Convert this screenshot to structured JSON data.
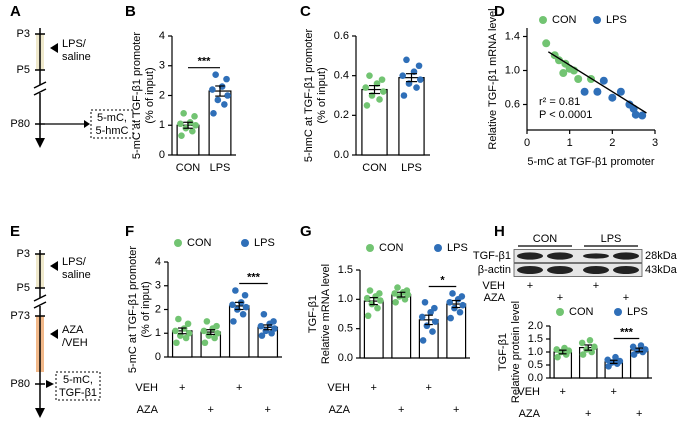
{
  "panel_labels": [
    "A",
    "B",
    "C",
    "D",
    "E",
    "F",
    "G",
    "H"
  ],
  "timeline_a": {
    "days": [
      "P3",
      "P5",
      "P80"
    ],
    "treatment": [
      "LPS/",
      "saline"
    ],
    "readout": [
      "5-mC,",
      "5-hmC"
    ]
  },
  "timeline_e": {
    "days": [
      "P3",
      "P5",
      "P73",
      "P80"
    ],
    "treatments": [
      [
        "LPS/",
        "saline"
      ],
      [
        "AZA",
        "/VEH"
      ]
    ],
    "readout": [
      "5-mC,",
      "TGF-β1"
    ]
  },
  "blot": {
    "groups": [
      "CON",
      "LPS"
    ],
    "bands": [
      {
        "name": "TGF-β1",
        "size": "28kDa"
      },
      {
        "name": "β-actin",
        "size": "43kDa"
      }
    ],
    "treatments": [
      {
        "name": "VEH",
        "marks": [
          "+",
          null,
          "+",
          null
        ]
      },
      {
        "name": "AZA",
        "marks": [
          null,
          "+",
          null,
          "+"
        ]
      }
    ]
  },
  "chart_data": [
    {
      "type": "bar",
      "ylabel": [
        "5-mC at TGF-β1 promoter",
        "(% of input)"
      ],
      "categories": [
        "CON",
        "LPS"
      ],
      "values": [
        1.0,
        2.15
      ],
      "errors": [
        0.1,
        0.17
      ],
      "colors": [
        "#72c472",
        "#2f6fb8"
      ],
      "points": [
        [
          0.65,
          0.8,
          0.9,
          1.0,
          1.05,
          1.1,
          1.3,
          1.4
        ],
        [
          1.4,
          1.7,
          1.85,
          2.0,
          2.2,
          2.3,
          2.55,
          2.7
        ]
      ],
      "ylim": [
        0,
        4
      ],
      "yticks": [
        0,
        1,
        2,
        3,
        4
      ],
      "significance": "***"
    },
    {
      "type": "bar",
      "ylabel": [
        "5-hmC at TGF-β1 promoter",
        "(% of input)"
      ],
      "categories": [
        "CON",
        "LPS"
      ],
      "values": [
        0.33,
        0.39
      ],
      "errors": [
        0.02,
        0.02
      ],
      "colors": [
        "#72c472",
        "#2f6fb8"
      ],
      "points": [
        [
          0.25,
          0.28,
          0.3,
          0.32,
          0.34,
          0.36,
          0.38,
          0.4
        ],
        [
          0.3,
          0.34,
          0.36,
          0.38,
          0.4,
          0.42,
          0.45,
          0.48
        ]
      ],
      "ylim": [
        0,
        0.6
      ],
      "yticks": [
        {
          "value": 0,
          "label": "0.0"
        },
        0.2,
        0.4,
        0.6
      ]
    },
    {
      "type": "scatter",
      "ylabel": "Relative TGF-β1 mRNA level",
      "xlabel": "5-mC at TGF-β1 promoter",
      "series": [
        {
          "name": "CON",
          "color": "#72c472",
          "x": [
            0.45,
            0.65,
            0.75,
            0.85,
            0.9,
            1.0,
            1.1,
            1.2,
            1.5
          ],
          "y": [
            1.32,
            1.18,
            1.12,
            0.97,
            1.08,
            1.02,
            1.0,
            0.9,
            0.9
          ]
        },
        {
          "name": "LPS",
          "color": "#2f6fb8",
          "x": [
            1.35,
            1.65,
            1.8,
            2.0,
            2.2,
            2.4,
            2.5,
            2.55,
            2.7
          ],
          "y": [
            0.75,
            0.75,
            0.88,
            0.68,
            0.75,
            0.6,
            0.55,
            0.48,
            0.47
          ]
        }
      ],
      "fit": {
        "x": [
          0.5,
          2.8
        ],
        "y": [
          1.22,
          0.5
        ]
      },
      "annotations": [
        "r² = 0.81",
        "P < 0.0001"
      ],
      "xlim": [
        0,
        3
      ],
      "xticks": [
        0,
        1,
        2,
        3
      ],
      "ylim": [
        0.3,
        1.5
      ],
      "yticks": [
        0.6,
        {
          "value": 1,
          "label": "1.0"
        },
        1.4
      ]
    },
    {
      "type": "bar",
      "ylabel": [
        "5-mC at TGF-β1 promoter",
        "(% of input)"
      ],
      "series": [
        {
          "name": "CON",
          "color": "#72c472",
          "values": [
            1.1,
            1.05
          ],
          "errors": [
            0.12,
            0.1
          ],
          "points": [
            [
              0.6,
              0.8,
              0.9,
              1.0,
              1.1,
              1.2,
              1.4,
              1.6
            ],
            [
              0.6,
              0.8,
              0.9,
              1.0,
              1.1,
              1.2,
              1.3,
              1.5
            ]
          ]
        },
        {
          "name": "LPS",
          "color": "#2f6fb8",
          "values": [
            2.15,
            1.25
          ],
          "errors": [
            0.15,
            0.1
          ],
          "significance": "***",
          "points": [
            [
              1.5,
              1.8,
              2.0,
              2.1,
              2.2,
              2.3,
              2.6,
              2.8
            ],
            [
              0.9,
              1.0,
              1.1,
              1.2,
              1.3,
              1.4,
              1.5,
              1.8
            ]
          ]
        }
      ],
      "treatments": [
        {
          "name": "VEH",
          "marks": [
            "+",
            null,
            "+",
            null
          ]
        },
        {
          "name": "AZA",
          "marks": [
            null,
            "+",
            null,
            "+"
          ]
        }
      ],
      "ylim": [
        0,
        4
      ],
      "yticks": [
        0,
        1,
        2,
        3,
        4
      ]
    },
    {
      "type": "bar",
      "ylabel": [
        "TGF-β1",
        "Relative mRNA level"
      ],
      "series": [
        {
          "name": "CON",
          "color": "#72c472",
          "values": [
            0.97,
            1.08
          ],
          "errors": [
            0.06,
            0.04
          ],
          "points": [
            [
              0.72,
              0.85,
              0.92,
              0.98,
              1.02,
              1.05,
              1.1,
              1.15
            ],
            [
              0.95,
              1.0,
              1.05,
              1.08,
              1.1,
              1.12,
              1.15,
              1.2
            ]
          ]
        },
        {
          "name": "LPS",
          "color": "#2f6fb8",
          "values": [
            0.65,
            0.92
          ],
          "errors": [
            0.08,
            0.06
          ],
          "significance": "*",
          "points": [
            [
              0.3,
              0.45,
              0.55,
              0.62,
              0.7,
              0.78,
              0.85,
              0.95
            ],
            [
              0.68,
              0.78,
              0.85,
              0.9,
              0.95,
              1.0,
              1.05,
              1.1
            ]
          ]
        }
      ],
      "treatments": [
        {
          "name": "VEH",
          "marks": [
            "+",
            null,
            "+",
            null
          ]
        },
        {
          "name": "AZA",
          "marks": [
            null,
            "+",
            null,
            "+"
          ]
        }
      ],
      "ylim": [
        0,
        1.5
      ],
      "yticks": [
        {
          "value": 0,
          "label": "0.0"
        },
        0.5,
        {
          "value": 1,
          "label": "1.0"
        },
        1.5
      ]
    },
    {
      "type": "bar",
      "ylabel": [
        "TGF-β1",
        "Relative protein level"
      ],
      "series": [
        {
          "name": "CON",
          "color": "#72c472",
          "values": [
            1.0,
            1.17
          ],
          "errors": [
            0.07,
            0.1
          ],
          "points": [
            [
              0.8,
              0.9,
              1.0,
              1.05,
              1.1,
              1.15
            ],
            [
              0.9,
              1.0,
              1.1,
              1.2,
              1.35,
              1.45
            ]
          ]
        },
        {
          "name": "LPS",
          "color": "#2f6fb8",
          "values": [
            0.62,
            1.08
          ],
          "errors": [
            0.06,
            0.07
          ],
          "significance": "***",
          "points": [
            [
              0.45,
              0.55,
              0.6,
              0.65,
              0.7,
              0.8
            ],
            [
              0.9,
              1.0,
              1.05,
              1.1,
              1.2,
              1.25
            ]
          ]
        }
      ],
      "treatments": [
        {
          "name": "VEH",
          "marks": [
            "+",
            null,
            "+",
            null
          ]
        },
        {
          "name": "AZA",
          "marks": [
            null,
            "+",
            null,
            "+"
          ]
        }
      ],
      "ylim": [
        0,
        2
      ],
      "yticks": [
        {
          "value": 0,
          "label": "0.0"
        },
        0.5,
        {
          "value": 1,
          "label": "1.0"
        },
        1.5,
        {
          "value": 2,
          "label": "2.0"
        }
      ]
    }
  ]
}
